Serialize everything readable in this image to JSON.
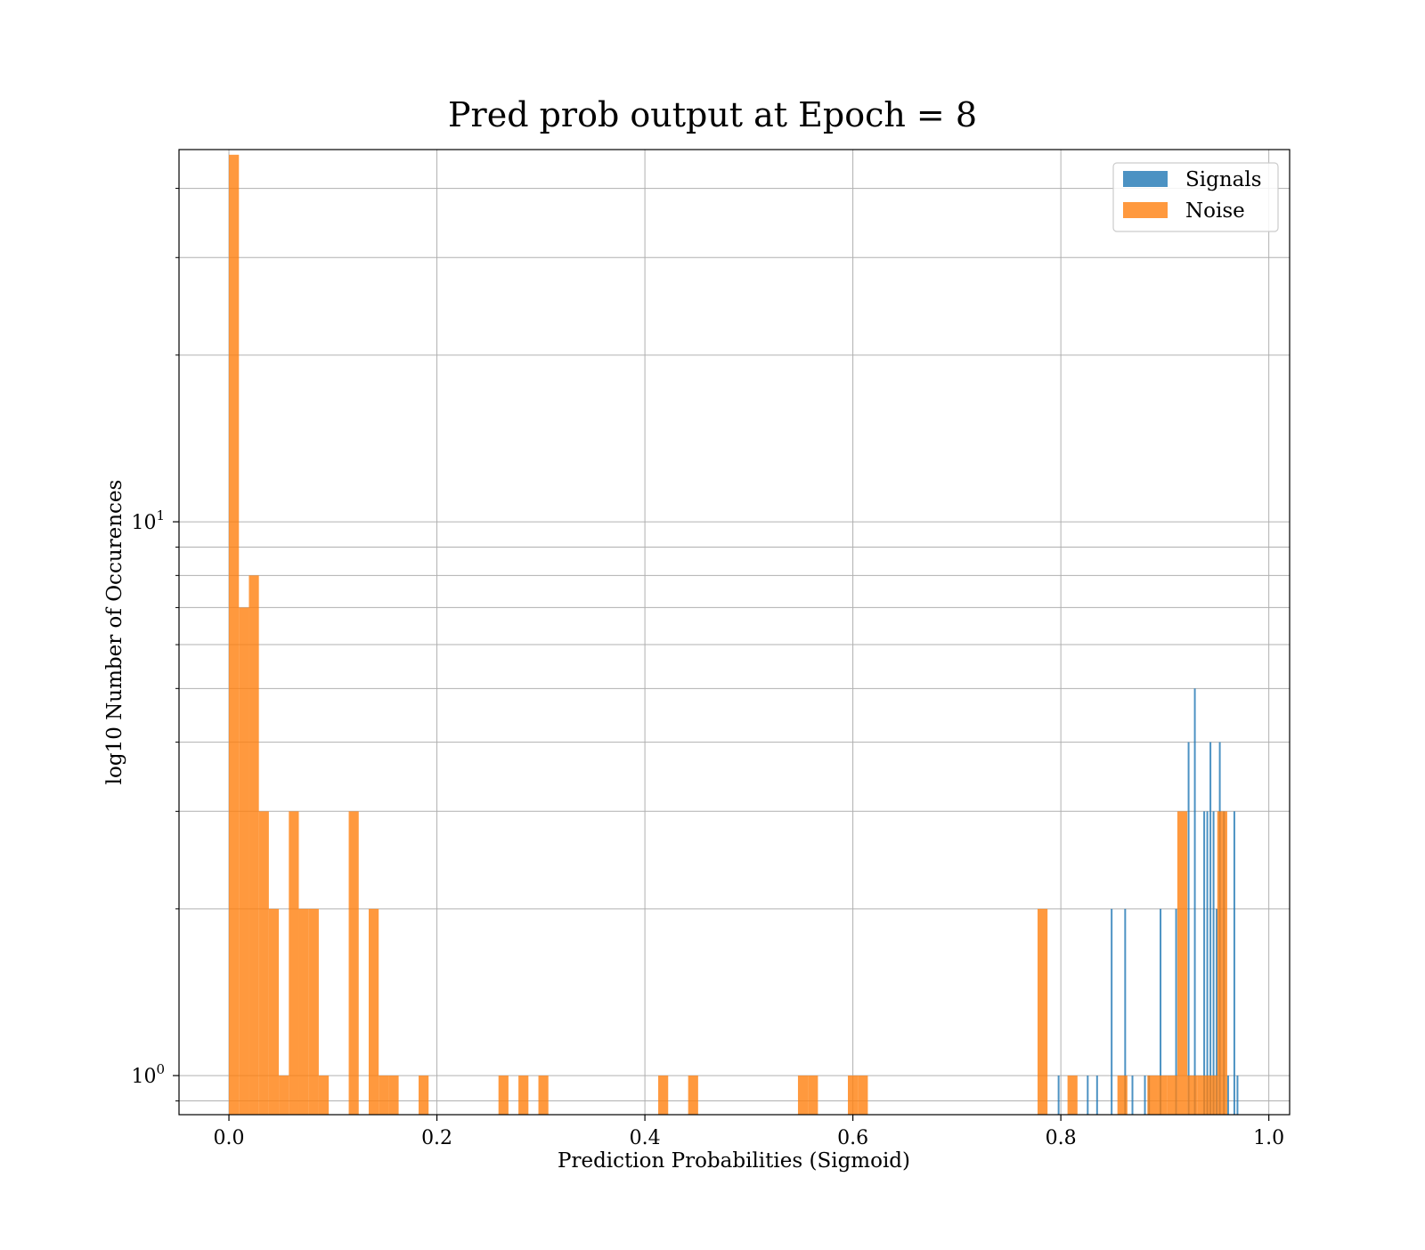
{
  "chart_data": {
    "type": "bar",
    "title": "Pred prob output at Epoch = 8",
    "xlabel": "Prediction Probabilities (Sigmoid)",
    "ylabel": "log10 Number of Occurences",
    "xlim": [
      -0.048,
      1.02
    ],
    "ylim": [
      0.85,
      47
    ],
    "yscale": "log",
    "grid": true,
    "legend_position": "upper-right",
    "xticks": [
      {
        "value": 0.0,
        "label": "0.0"
      },
      {
        "value": 0.2,
        "label": "0.2"
      },
      {
        "value": 0.4,
        "label": "0.4"
      },
      {
        "value": 0.6,
        "label": "0.6"
      },
      {
        "value": 0.8,
        "label": "0.8"
      },
      {
        "value": 1.0,
        "label": "1.0"
      }
    ],
    "yticks_major": [
      {
        "value": 1,
        "base": "10",
        "exp": "0"
      },
      {
        "value": 10,
        "base": "10",
        "exp": "1"
      }
    ],
    "yticks_minor": [
      0.9,
      2,
      3,
      4,
      5,
      6,
      7,
      8,
      9,
      20,
      30,
      40
    ],
    "series": [
      {
        "name": "Signals",
        "color": "#1f77b4",
        "bin_width": 0.0017,
        "bins": [
          {
            "x": 0.797,
            "count": 1
          },
          {
            "x": 0.825,
            "count": 1
          },
          {
            "x": 0.834,
            "count": 1
          },
          {
            "x": 0.848,
            "count": 2
          },
          {
            "x": 0.861,
            "count": 2
          },
          {
            "x": 0.868,
            "count": 1
          },
          {
            "x": 0.88,
            "count": 1
          },
          {
            "x": 0.884,
            "count": 1
          },
          {
            "x": 0.895,
            "count": 2
          },
          {
            "x": 0.91,
            "count": 2
          },
          {
            "x": 0.922,
            "count": 4
          },
          {
            "x": 0.928,
            "count": 5
          },
          {
            "x": 0.937,
            "count": 3
          },
          {
            "x": 0.94,
            "count": 3
          },
          {
            "x": 0.943,
            "count": 4
          },
          {
            "x": 0.946,
            "count": 3
          },
          {
            "x": 0.949,
            "count": 2
          },
          {
            "x": 0.952,
            "count": 4
          },
          {
            "x": 0.956,
            "count": 3
          },
          {
            "x": 0.96,
            "count": 1
          },
          {
            "x": 0.966,
            "count": 3
          },
          {
            "x": 0.969,
            "count": 1
          }
        ]
      },
      {
        "name": "Noise",
        "color": "#ff7f0e",
        "bin_width": 0.0096,
        "bins": [
          {
            "x": 0.0,
            "count": 46
          },
          {
            "x": 0.0096,
            "count": 7
          },
          {
            "x": 0.0192,
            "count": 8
          },
          {
            "x": 0.0288,
            "count": 3
          },
          {
            "x": 0.0384,
            "count": 2
          },
          {
            "x": 0.048,
            "count": 1
          },
          {
            "x": 0.0576,
            "count": 3
          },
          {
            "x": 0.0672,
            "count": 2
          },
          {
            "x": 0.0768,
            "count": 2
          },
          {
            "x": 0.0864,
            "count": 1
          },
          {
            "x": 0.1152,
            "count": 3
          },
          {
            "x": 0.1344,
            "count": 2
          },
          {
            "x": 0.144,
            "count": 1
          },
          {
            "x": 0.1536,
            "count": 1
          },
          {
            "x": 0.1824,
            "count": 1
          },
          {
            "x": 0.2592,
            "count": 1
          },
          {
            "x": 0.2784,
            "count": 1
          },
          {
            "x": 0.2976,
            "count": 1
          },
          {
            "x": 0.4128,
            "count": 1
          },
          {
            "x": 0.4416,
            "count": 1
          },
          {
            "x": 0.5472,
            "count": 1
          },
          {
            "x": 0.5568,
            "count": 1
          },
          {
            "x": 0.5952,
            "count": 1
          },
          {
            "x": 0.6048,
            "count": 1
          },
          {
            "x": 0.7776,
            "count": 2
          },
          {
            "x": 0.8064,
            "count": 1
          },
          {
            "x": 0.8544,
            "count": 1
          },
          {
            "x": 0.8832,
            "count": 1
          },
          {
            "x": 0.8928,
            "count": 1
          },
          {
            "x": 0.9024,
            "count": 1
          },
          {
            "x": 0.912,
            "count": 3
          },
          {
            "x": 0.9216,
            "count": 1
          },
          {
            "x": 0.9312,
            "count": 1
          },
          {
            "x": 0.9408,
            "count": 1
          },
          {
            "x": 0.9504,
            "count": 3
          }
        ]
      }
    ]
  }
}
